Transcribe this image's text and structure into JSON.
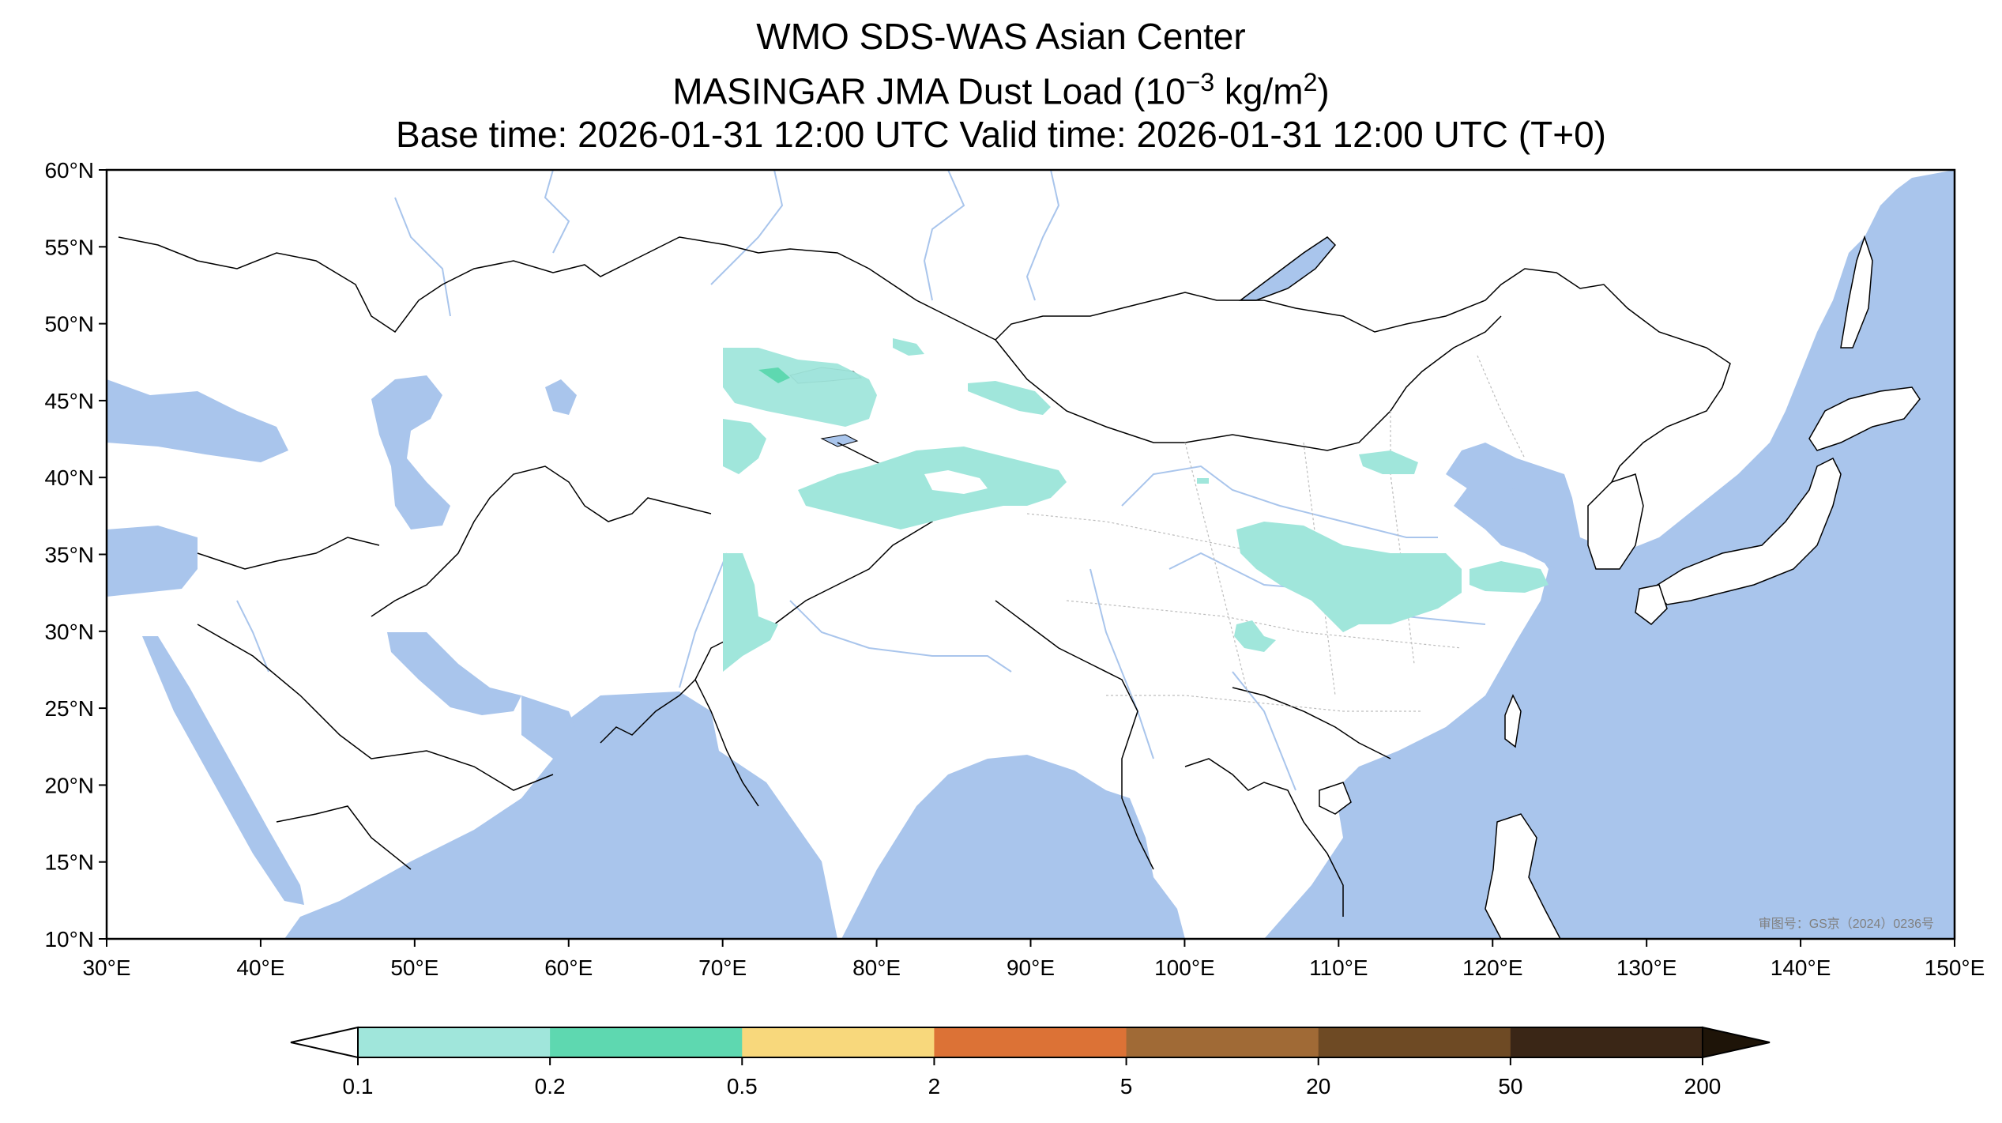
{
  "title": {
    "line1": "WMO SDS-WAS Asian Center",
    "line2_prefix": "MASINGAR JMA Dust Load (10",
    "line2_exp": "−3",
    "line2_mid": " kg/m",
    "line2_sup": "2",
    "line2_suffix": ")",
    "line3": "Base time: 2026-01-31 12:00 UTC Valid time: 2026-01-31 12:00 UTC (T+0)"
  },
  "map": {
    "extent_lon": [
      30,
      150
    ],
    "extent_lat": [
      10,
      60
    ],
    "ocean_color": "#a9c5ec",
    "land_color": "#ffffff",
    "river_color": "#a9c5ec",
    "border_color": "#000000",
    "lat_ticks": [
      {
        "value": 60,
        "label": "60°N"
      },
      {
        "value": 55,
        "label": "55°N"
      },
      {
        "value": 50,
        "label": "50°N"
      },
      {
        "value": 45,
        "label": "45°N"
      },
      {
        "value": 40,
        "label": "40°N"
      },
      {
        "value": 35,
        "label": "35°N"
      },
      {
        "value": 30,
        "label": "30°N"
      },
      {
        "value": 25,
        "label": "25°N"
      },
      {
        "value": 20,
        "label": "20°N"
      },
      {
        "value": 15,
        "label": "15°N"
      },
      {
        "value": 10,
        "label": "10°N"
      }
    ],
    "lon_ticks": [
      {
        "value": 30,
        "label": "30°E"
      },
      {
        "value": 40,
        "label": "40°E"
      },
      {
        "value": 50,
        "label": "50°E"
      },
      {
        "value": 60,
        "label": "60°E"
      },
      {
        "value": 70,
        "label": "70°E"
      },
      {
        "value": 80,
        "label": "80°E"
      },
      {
        "value": 90,
        "label": "90°E"
      },
      {
        "value": 100,
        "label": "100°E"
      },
      {
        "value": 110,
        "label": "110°E"
      },
      {
        "value": 120,
        "label": "120°E"
      },
      {
        "value": 130,
        "label": "130°E"
      },
      {
        "value": 140,
        "label": "140°E"
      },
      {
        "value": 150,
        "label": "150°E"
      }
    ],
    "watermark": "审图号：GS京（2024）0236号"
  },
  "dust_regions": [
    {
      "name": "kazakhstan-balkhash",
      "level": "0.1-0.2"
    },
    {
      "name": "balkhash-core",
      "level": "0.2-0.5"
    },
    {
      "name": "tarim-basin",
      "level": "0.1-0.2"
    },
    {
      "name": "north-china-plain",
      "level": "0.1-0.2"
    },
    {
      "name": "pakistan-thar",
      "level": "0.1-0.2"
    }
  ],
  "colorbar": {
    "levels": [
      "0.1",
      "0.2",
      "0.5",
      "2",
      "5",
      "20",
      "50",
      "200"
    ],
    "colors": [
      "#a0e6db",
      "#5ed8b0",
      "#f8d87c",
      "#dc7236",
      "#a06a36",
      "#6e4a24",
      "#3a2616"
    ],
    "under_color": "#ffffff",
    "over_color": "#1e1408"
  }
}
